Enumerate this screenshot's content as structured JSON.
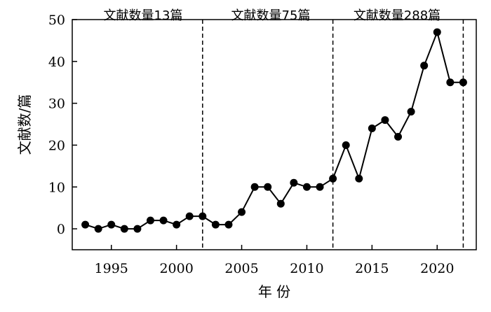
{
  "chart_data": {
    "type": "line",
    "xlabel": "年 份",
    "ylabel": "文献数/篇",
    "xlim": [
      1992,
      2023
    ],
    "ylim": [
      -5,
      50
    ],
    "xticks": [
      1995,
      2000,
      2005,
      2010,
      2015,
      2020
    ],
    "yticks": [
      0,
      10,
      20,
      30,
      40,
      50
    ],
    "grid": false,
    "series": [
      {
        "x": [
          1993,
          1994,
          1995,
          1996,
          1997,
          1998,
          1999,
          2000,
          2001,
          2002,
          2003,
          2004,
          2005,
          2006,
          2007,
          2008,
          2009,
          2010,
          2011,
          2012,
          2013,
          2014,
          2015,
          2016,
          2017,
          2018,
          2019,
          2020,
          2021,
          2022
        ],
        "y": [
          1,
          0,
          1,
          0,
          0,
          2,
          2,
          1,
          3,
          3,
          1,
          1,
          4,
          10,
          10,
          6,
          11,
          10,
          10,
          12,
          20,
          12,
          24,
          26,
          22,
          28,
          39,
          47,
          35,
          35
        ]
      }
    ],
    "dividers": [
      2002,
      2012,
      2022
    ],
    "annotations": [
      "文献数量13篇",
      "文献数量75篇",
      "文献数量288篇"
    ]
  }
}
